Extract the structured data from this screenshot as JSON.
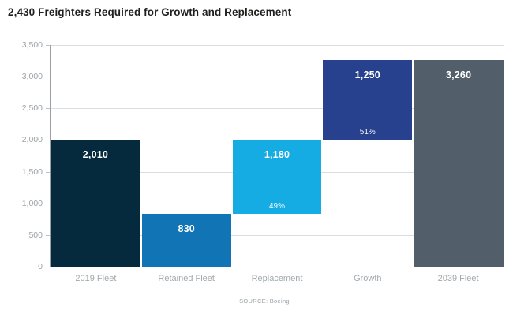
{
  "chart_data": {
    "type": "bar",
    "subtype": "waterfall",
    "title": "2,430 Freighters Required for Growth and Replacement",
    "source": "SOURCE: Boeing",
    "xlabel": "",
    "ylabel": "",
    "ylim": [
      0,
      3500
    ],
    "ytick_step": 500,
    "grid": true,
    "legend": false,
    "yticks": [
      {
        "value": 3500,
        "label": "3,500"
      },
      {
        "value": 3000,
        "label": "3,000"
      },
      {
        "value": 2500,
        "label": "2,500"
      },
      {
        "value": 2000,
        "label": "2,000"
      },
      {
        "value": 1500,
        "label": "1,500"
      },
      {
        "value": 1000,
        "label": "1,000"
      },
      {
        "value": 500,
        "label": "500"
      },
      {
        "value": 0,
        "label": "0"
      }
    ],
    "categories": [
      "2019 Fleet",
      "Retained Fleet",
      "Replacement",
      "Growth",
      "2039 Fleet"
    ],
    "bars": [
      {
        "category": "2019 Fleet",
        "from": 0,
        "to": 2010,
        "value": 2010,
        "value_label": "2,010",
        "pct_label": "",
        "color": "#05293d"
      },
      {
        "category": "Retained Fleet",
        "from": 0,
        "to": 830,
        "value": 830,
        "value_label": "830",
        "pct_label": "",
        "color": "#1175b5"
      },
      {
        "category": "Replacement",
        "from": 830,
        "to": 2010,
        "value": 1180,
        "value_label": "1,180",
        "pct_label": "49%",
        "color": "#15abe3"
      },
      {
        "category": "Growth",
        "from": 2010,
        "to": 3260,
        "value": 1250,
        "value_label": "1,250",
        "pct_label": "51%",
        "color": "#28418f"
      },
      {
        "category": "2039 Fleet",
        "from": 0,
        "to": 3260,
        "value": 3260,
        "value_label": "3,260",
        "pct_label": "",
        "color": "#525e69"
      }
    ],
    "colors": {
      "axis": "#9aa1a6",
      "grid": "#dadde0",
      "tick_label": "#9ba2a7",
      "x_label": "#a3a9ad",
      "bar_value_text": "#ffffff",
      "title_text": "#1f1f1d"
    }
  }
}
